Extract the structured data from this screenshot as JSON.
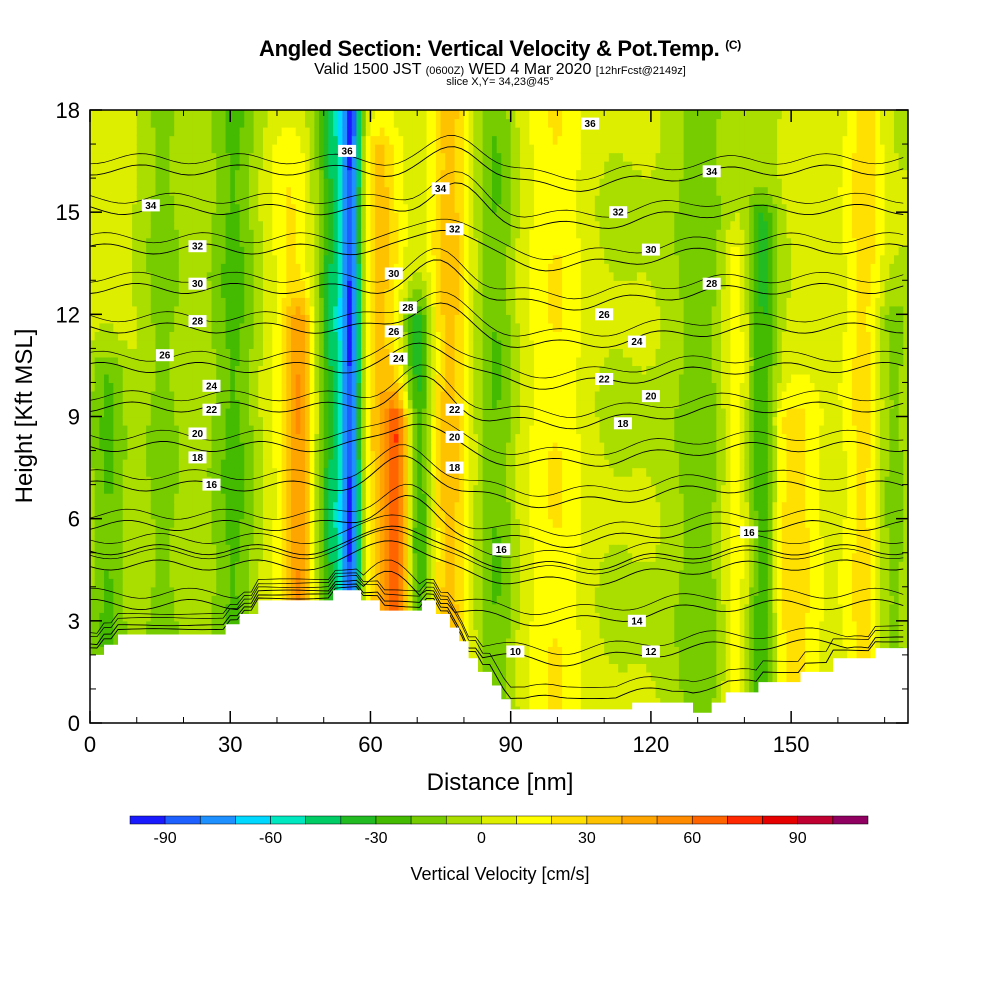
{
  "header": {
    "title": "Angled Section: Vertical Velocity & Pot.Temp.",
    "title_tag": "(C)",
    "valid_prefix": "Valid 1500 JST",
    "valid_utc": "(0600Z)",
    "valid_date": "WED 4 Mar 2020",
    "forecast": "[12hrFcst@2149z]",
    "slice": "slice X,Y= 34,23@45°"
  },
  "chart_data": {
    "type": "heatmap",
    "xlabel": "Distance [nm]",
    "ylabel": "Height [Kft MSL]",
    "xlim": [
      0,
      175
    ],
    "ylim": [
      0,
      18
    ],
    "x_ticks": [
      0,
      30,
      60,
      90,
      120,
      150
    ],
    "y_ticks": [
      0,
      3,
      6,
      9,
      12,
      15,
      18
    ],
    "colorbar": {
      "label": "Vertical Velocity [cm/s]",
      "tick_values": [
        -90,
        -60,
        -30,
        0,
        30,
        60,
        90
      ],
      "bins": [
        -100,
        -90,
        -80,
        -70,
        -60,
        -50,
        -40,
        -30,
        -20,
        -10,
        0,
        10,
        20,
        30,
        40,
        50,
        60,
        70,
        80,
        90,
        100,
        110
      ],
      "colors": [
        "#1a1aff",
        "#1e60ff",
        "#1e90ff",
        "#00d8ff",
        "#00e8c0",
        "#00cc66",
        "#22bb22",
        "#44bb00",
        "#77cc00",
        "#aadd00",
        "#ddee00",
        "#ffff00",
        "#ffe000",
        "#ffc200",
        "#ffa500",
        "#ff8c00",
        "#ff6400",
        "#ff2800",
        "#e60000",
        "#c00030",
        "#900060",
        "#6a00a0"
      ]
    },
    "velocity_features": [
      {
        "x": 4,
        "z_top": 10.5,
        "w": -25,
        "width": 4
      },
      {
        "x": 15,
        "z_top": 18,
        "w": -15,
        "width": 5
      },
      {
        "x": 31,
        "z_top": 18,
        "w": -25,
        "width": 5
      },
      {
        "x": 43,
        "z_top": 17,
        "w": 15,
        "width": 4
      },
      {
        "x": 45,
        "z_top": 12,
        "w": 35,
        "width": 3
      },
      {
        "x": 53,
        "z_top": 18,
        "w": -45,
        "width": 4
      },
      {
        "x": 56,
        "z_top": 18,
        "w": -65,
        "width": 2
      },
      {
        "x": 62,
        "z_top": 17,
        "w": 30,
        "width": 4
      },
      {
        "x": 66,
        "z_top": 9,
        "w": 55,
        "width": 3
      },
      {
        "x": 70,
        "z_top": 12,
        "w": -40,
        "width": 3
      },
      {
        "x": 77,
        "z_top": 18,
        "w": 35,
        "width": 4
      },
      {
        "x": 87,
        "z_top": 18,
        "w": -20,
        "width": 4
      },
      {
        "x": 100,
        "z_top": 18,
        "w": 15,
        "width": 6
      },
      {
        "x": 130,
        "z_top": 18,
        "w": -20,
        "width": 7
      },
      {
        "x": 138,
        "z_top": 14,
        "w": 20,
        "width": 3
      },
      {
        "x": 144,
        "z_top": 15,
        "w": -30,
        "width": 3
      },
      {
        "x": 150,
        "z_top": 9,
        "w": 25,
        "width": 5
      },
      {
        "x": 166,
        "z_top": 18,
        "w": 25,
        "width": 4
      },
      {
        "x": 171,
        "z_top": 12,
        "w": -15,
        "width": 4
      }
    ],
    "terrain_profile": [
      [
        0,
        2
      ],
      [
        3,
        2
      ],
      [
        3,
        2.3
      ],
      [
        6,
        2.3
      ],
      [
        6,
        2.6
      ],
      [
        29,
        2.6
      ],
      [
        29,
        2.9
      ],
      [
        32,
        2.9
      ],
      [
        32,
        3.2
      ],
      [
        36,
        3.2
      ],
      [
        36,
        3.6
      ],
      [
        52,
        3.6
      ],
      [
        52,
        3.9
      ],
      [
        58,
        3.9
      ],
      [
        58,
        3.6
      ],
      [
        62,
        3.6
      ],
      [
        62,
        3.3
      ],
      [
        71,
        3.3
      ],
      [
        71,
        3.6
      ],
      [
        74,
        3.6
      ],
      [
        74,
        3.2
      ],
      [
        77,
        3.2
      ],
      [
        77,
        2.8
      ],
      [
        79,
        2.8
      ],
      [
        79,
        2.4
      ],
      [
        81,
        2.4
      ],
      [
        81,
        1.9
      ],
      [
        83,
        1.9
      ],
      [
        83,
        1.5
      ],
      [
        86,
        1.5
      ],
      [
        86,
        1.1
      ],
      [
        88,
        1.1
      ],
      [
        88,
        0.7
      ],
      [
        90,
        0.7
      ],
      [
        90,
        0.4
      ],
      [
        116,
        0.4
      ],
      [
        116,
        0.6
      ],
      [
        129,
        0.6
      ],
      [
        129,
        0.3
      ],
      [
        133,
        0.3
      ],
      [
        133,
        0.6
      ],
      [
        136,
        0.6
      ],
      [
        136,
        0.9
      ],
      [
        143,
        0.9
      ],
      [
        143,
        1.2
      ],
      [
        152,
        1.2
      ],
      [
        152,
        1.5
      ],
      [
        159,
        1.5
      ],
      [
        159,
        1.9
      ],
      [
        168,
        1.9
      ],
      [
        168,
        2.2
      ],
      [
        175,
        2.2
      ]
    ],
    "theta_contours": [
      10,
      12,
      14,
      16,
      16,
      18,
      20,
      22,
      24,
      26,
      28,
      30,
      32,
      34,
      36
    ],
    "contour_labels": [
      {
        "text": "36",
        "x": 55,
        "z": 16.8
      },
      {
        "text": "36",
        "x": 107,
        "z": 17.6
      },
      {
        "text": "34",
        "x": 13,
        "z": 15.2
      },
      {
        "text": "34",
        "x": 75,
        "z": 15.7
      },
      {
        "text": "34",
        "x": 133,
        "z": 16.2
      },
      {
        "text": "32",
        "x": 23,
        "z": 14
      },
      {
        "text": "32",
        "x": 78,
        "z": 14.5
      },
      {
        "text": "32",
        "x": 113,
        "z": 15
      },
      {
        "text": "30",
        "x": 23,
        "z": 12.9
      },
      {
        "text": "30",
        "x": 65,
        "z": 13.2
      },
      {
        "text": "30",
        "x": 120,
        "z": 13.9
      },
      {
        "text": "28",
        "x": 23,
        "z": 11.8
      },
      {
        "text": "28",
        "x": 68,
        "z": 12.2
      },
      {
        "text": "28",
        "x": 133,
        "z": 12.9
      },
      {
        "text": "26",
        "x": 16,
        "z": 10.8
      },
      {
        "text": "26",
        "x": 65,
        "z": 11.5
      },
      {
        "text": "26",
        "x": 110,
        "z": 12
      },
      {
        "text": "24",
        "x": 26,
        "z": 9.9
      },
      {
        "text": "24",
        "x": 66,
        "z": 10.7
      },
      {
        "text": "24",
        "x": 117,
        "z": 11.2
      },
      {
        "text": "22",
        "x": 26,
        "z": 9.2
      },
      {
        "text": "22",
        "x": 78,
        "z": 9.2
      },
      {
        "text": "22",
        "x": 110,
        "z": 10.1
      },
      {
        "text": "20",
        "x": 23,
        "z": 8.5
      },
      {
        "text": "20",
        "x": 78,
        "z": 8.4
      },
      {
        "text": "20",
        "x": 120,
        "z": 9.6
      },
      {
        "text": "18",
        "x": 23,
        "z": 7.8
      },
      {
        "text": "18",
        "x": 78,
        "z": 7.5
      },
      {
        "text": "18",
        "x": 114,
        "z": 8.8
      },
      {
        "text": "16",
        "x": 26,
        "z": 7
      },
      {
        "text": "16",
        "x": 88,
        "z": 5.1
      },
      {
        "text": "16",
        "x": 141,
        "z": 5.6
      },
      {
        "text": "14",
        "x": 117,
        "z": 3
      },
      {
        "text": "12",
        "x": 120,
        "z": 2.1
      },
      {
        "text": "10",
        "x": 91,
        "z": 2.1
      }
    ]
  }
}
